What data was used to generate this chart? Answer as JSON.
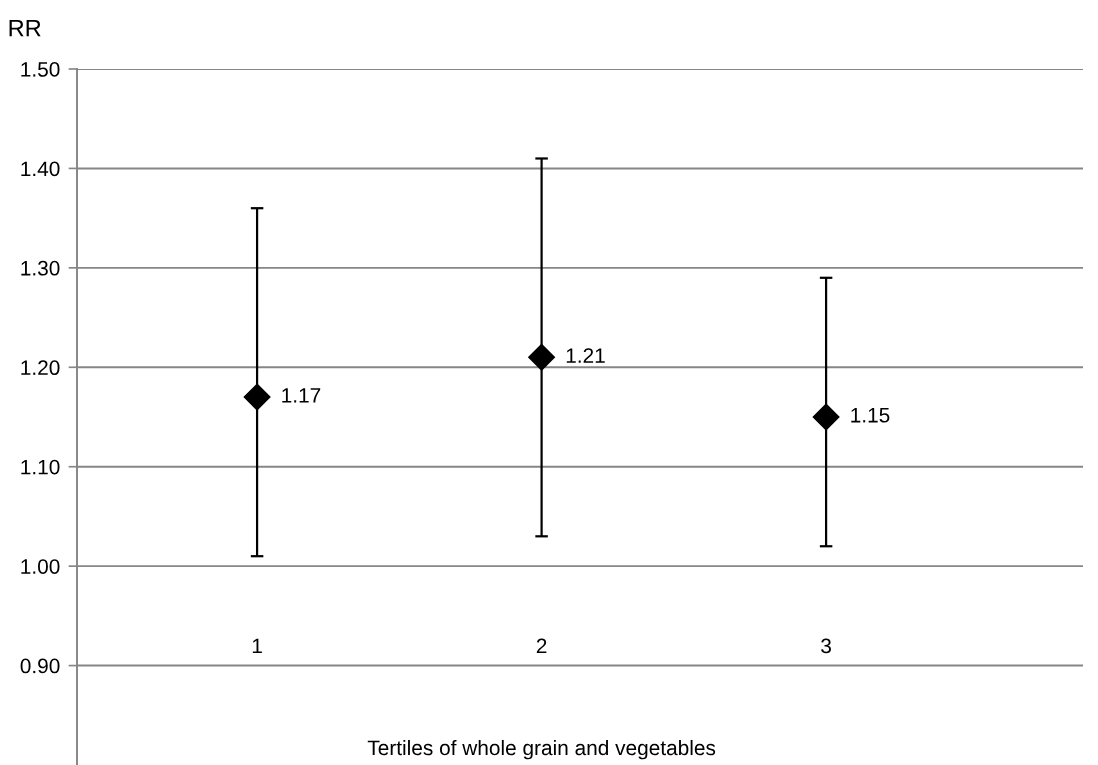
{
  "chart_data": {
    "type": "scatter",
    "ylabel": "RR",
    "xlabel": "Tertiles of whole grain and vegetables",
    "categories": [
      "1",
      "2",
      "3"
    ],
    "series": [
      {
        "color": "#000000",
        "values": [
          1.17,
          1.21,
          1.15
        ],
        "errors": [
          [
            1.01,
            1.36
          ],
          [
            1.03,
            1.41
          ],
          [
            1.02,
            1.29
          ]
        ]
      }
    ],
    "ylim": [
      0.8,
      1.5
    ],
    "yticks": [
      {
        "value": 0.9,
        "label": "0.90"
      },
      {
        "value": 1.0,
        "label": "1.00"
      },
      {
        "value": 1.1,
        "label": "1.10"
      },
      {
        "value": 1.2,
        "label": "1.20"
      },
      {
        "value": 1.3,
        "label": "1.30"
      },
      {
        "value": 1.4,
        "label": "1.40"
      },
      {
        "value": 1.5,
        "label": "1.50"
      }
    ],
    "grid": "y",
    "marker": "diamond",
    "data_labels": true
  }
}
